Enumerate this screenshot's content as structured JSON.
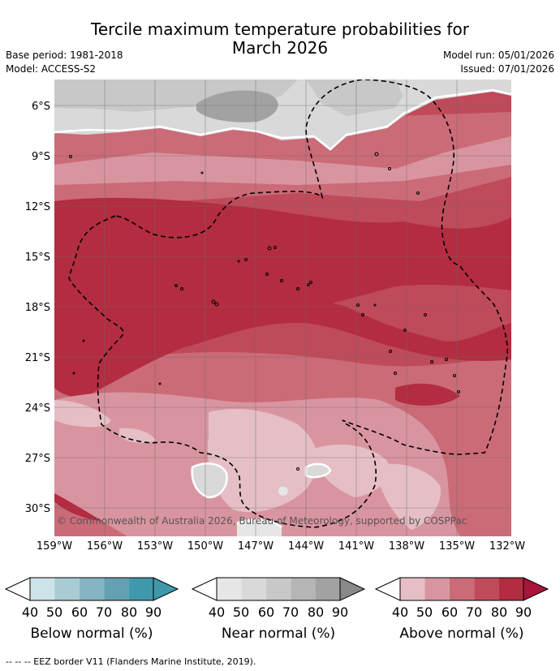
{
  "title": {
    "line1": "Tercile maximum temperature probabilities for",
    "line2": "March 2026"
  },
  "meta": {
    "base_period": "Base period: 1981-2018",
    "model": "Model: ACCESS-S2",
    "model_run": "Model run: 05/01/2026",
    "issued": "Issued: 07/01/2026"
  },
  "map": {
    "lat_ticks": [
      "6°S",
      "9°S",
      "12°S",
      "15°S",
      "18°S",
      "21°S",
      "24°S",
      "27°S",
      "30°S"
    ],
    "lon_ticks": [
      "159°W",
      "156°W",
      "153°W",
      "150°W",
      "147°W",
      "144°W",
      "141°W",
      "138°W",
      "135°W",
      "132°W"
    ],
    "copyright": "© Commonwealth of Australia 2026, Bureau of Meteorology, supported by COSPPac",
    "colors": {
      "above": [
        "#e6bfc6",
        "#d9959f",
        "#cb6b78",
        "#bf4a59",
        "#b32c40",
        "#a8143a"
      ],
      "near": [
        "#e6e6e6",
        "#d9d9d9",
        "#c8c8c8",
        "#b5b5b5",
        "#a2a2a2"
      ],
      "below": [
        "#cde3ea",
        "#a9cbd4",
        "#85b5c2",
        "#63a1b2",
        "#3f98ab"
      ]
    }
  },
  "colorbars": {
    "below": {
      "labels": [
        "40",
        "50",
        "60",
        "70",
        "80",
        "90"
      ],
      "title": "Below normal (%)"
    },
    "near": {
      "labels": [
        "40",
        "50",
        "60",
        "70",
        "80",
        "90"
      ],
      "title": "Near normal (%)"
    },
    "above": {
      "labels": [
        "40",
        "50",
        "60",
        "70",
        "80",
        "90"
      ],
      "title": "Above normal (%)"
    }
  },
  "footer": "--  --  -- EEZ border V11 (Flanders Marine Institute, 2019)."
}
